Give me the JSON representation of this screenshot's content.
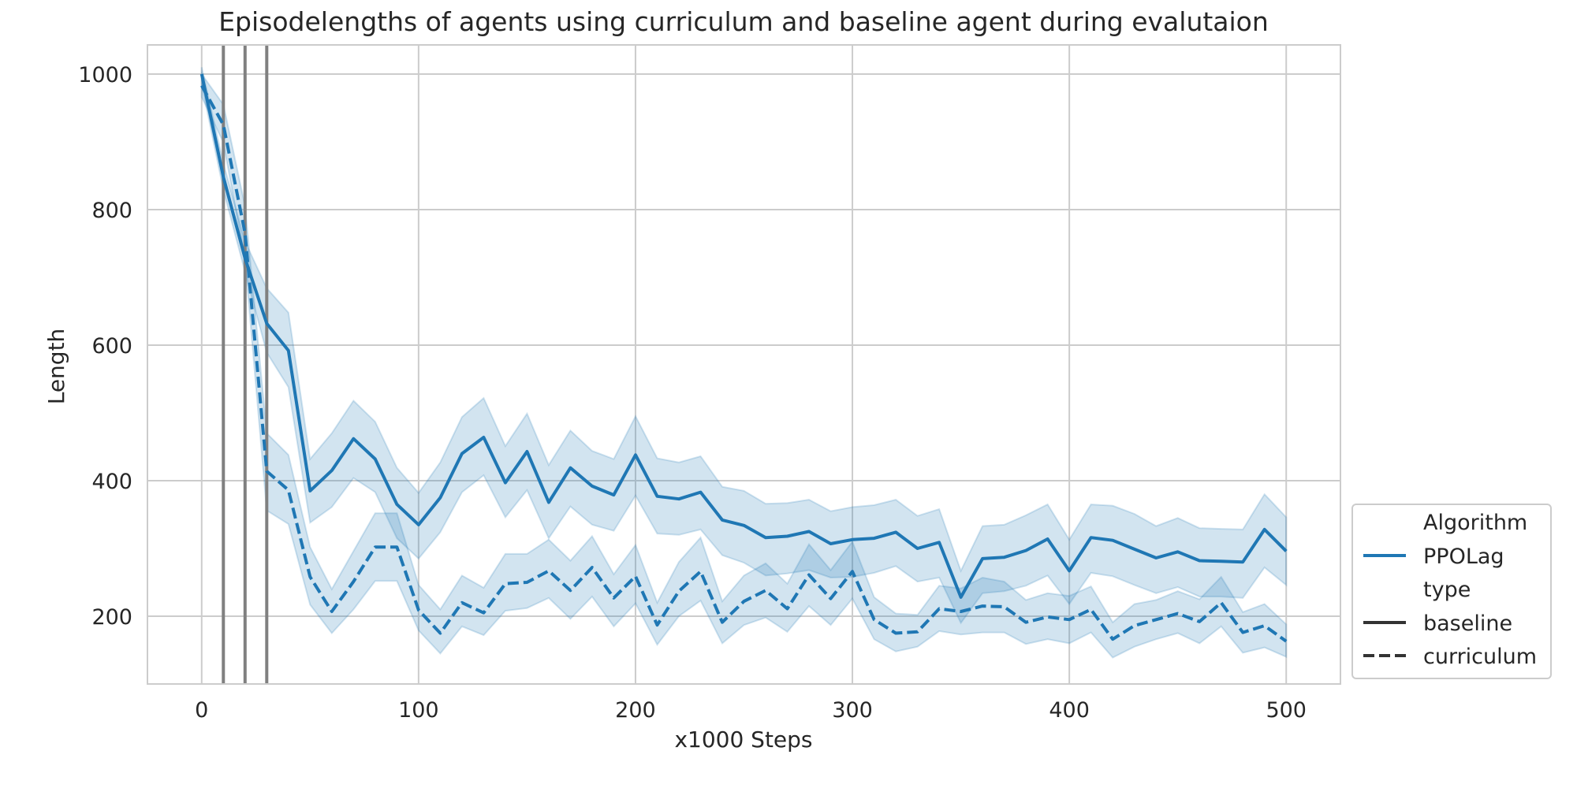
{
  "chart_data": {
    "type": "line",
    "title": "Episodelengths of agents using curriculum and baseline agent during evalutaion",
    "xlabel": "x1000 Steps",
    "ylabel": "Length",
    "xlim": [
      -25,
      525
    ],
    "ylim": [
      100,
      1043
    ],
    "xticks": [
      0,
      100,
      200,
      300,
      400,
      500
    ],
    "yticks": [
      200,
      400,
      600,
      800,
      1000
    ],
    "grid": true,
    "legend_position": "lower-right",
    "legend": {
      "hue_title": "Algorithm",
      "hue_entries": [
        {
          "label": "PPOLag",
          "color": "#1f77b4"
        }
      ],
      "style_title": "type",
      "style_entries": [
        {
          "label": "baseline",
          "dash": "solid"
        },
        {
          "label": "curriculum",
          "dash": "dashed"
        }
      ]
    },
    "vertical_lines": [
      10,
      20,
      30
    ],
    "x": [
      0,
      10,
      20,
      30,
      40,
      50,
      60,
      70,
      80,
      90,
      100,
      110,
      120,
      130,
      140,
      150,
      160,
      170,
      180,
      190,
      200,
      210,
      220,
      230,
      240,
      250,
      260,
      270,
      280,
      290,
      300,
      310,
      320,
      330,
      340,
      350,
      360,
      370,
      380,
      390,
      400,
      410,
      420,
      430,
      440,
      450,
      460,
      470,
      480,
      490,
      500
    ],
    "series": [
      {
        "name": "baseline",
        "algorithm": "PPOLag",
        "style": "solid",
        "color": "#1f77b4",
        "values": [
          1000,
          848,
          728,
          632,
          592,
          385,
          415,
          462,
          432,
          365,
          335,
          375,
          440,
          464,
          397,
          443,
          368,
          419,
          392,
          379,
          438,
          377,
          373,
          383,
          342,
          334,
          316,
          318,
          325,
          307,
          313,
          315,
          324,
          300,
          309,
          228,
          285,
          287,
          297,
          314,
          267,
          316,
          312,
          299,
          286,
          295,
          282,
          281,
          280,
          328,
          296
        ],
        "ci_low": [
          985,
          829,
          708,
          589,
          538,
          338,
          361,
          404,
          383,
          315,
          285,
          324,
          383,
          408,
          346,
          386,
          315,
          362,
          335,
          326,
          378,
          322,
          320,
          328,
          290,
          279,
          260,
          263,
          268,
          257,
          258,
          264,
          274,
          251,
          257,
          190,
          234,
          237,
          245,
          260,
          218,
          264,
          259,
          246,
          234,
          243,
          229,
          229,
          227,
          272,
          246
        ],
        "ci_high": [
          1010,
          868,
          753,
          684,
          648,
          432,
          470,
          518,
          487,
          419,
          382,
          427,
          494,
          522,
          451,
          499,
          423,
          474,
          444,
          432,
          495,
          433,
          427,
          436,
          391,
          385,
          366,
          367,
          372,
          355,
          361,
          364,
          372,
          348,
          358,
          267,
          333,
          335,
          349,
          365,
          313,
          365,
          363,
          351,
          333,
          345,
          330,
          329,
          328,
          380,
          346
        ]
      },
      {
        "name": "curriculum",
        "algorithm": "PPOLag",
        "style": "dashed",
        "color": "#1f77b4",
        "values": [
          983,
          925,
          765,
          414,
          386,
          258,
          207,
          251,
          302,
          302,
          209,
          175,
          220,
          205,
          248,
          250,
          267,
          238,
          272,
          227,
          259,
          187,
          237,
          266,
          191,
          222,
          238,
          211,
          261,
          226,
          266,
          195,
          175,
          177,
          211,
          207,
          215,
          214,
          191,
          199,
          195,
          210,
          166,
          186,
          195,
          204,
          192,
          220,
          176,
          186,
          163
        ],
        "ci_low": [
          966,
          899,
          725,
          356,
          336,
          217,
          175,
          210,
          252,
          252,
          179,
          145,
          185,
          172,
          208,
          212,
          227,
          196,
          229,
          185,
          219,
          158,
          200,
          223,
          160,
          187,
          198,
          177,
          215,
          187,
          226,
          166,
          148,
          155,
          178,
          173,
          176,
          176,
          159,
          166,
          160,
          176,
          139,
          155,
          166,
          175,
          160,
          185,
          146,
          154,
          140
        ],
        "ci_high": [
          1000,
          955,
          805,
          470,
          438,
          302,
          240,
          296,
          352,
          352,
          246,
          210,
          260,
          242,
          292,
          292,
          313,
          282,
          318,
          262,
          305,
          220,
          280,
          316,
          222,
          260,
          278,
          248,
          306,
          268,
          310,
          228,
          204,
          202,
          245,
          241,
          257,
          251,
          224,
          234,
          230,
          244,
          191,
          218,
          224,
          237,
          225,
          258,
          206,
          218,
          188
        ]
      }
    ]
  }
}
